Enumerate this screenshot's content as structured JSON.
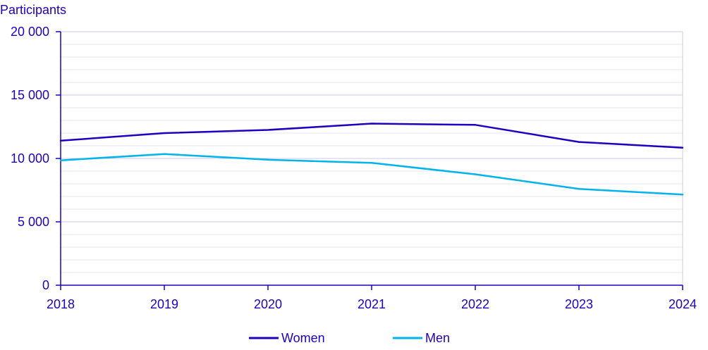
{
  "chart_data": {
    "type": "line",
    "ylabel": "Participants",
    "x": [
      "2018",
      "2019",
      "2020",
      "2021",
      "2022",
      "2023",
      "2024"
    ],
    "ylim": [
      0,
      20000
    ],
    "yticks": [
      0,
      5000,
      10000,
      15000,
      20000
    ],
    "ytick_labels": [
      "0",
      "5 000",
      "10 000",
      "15 000",
      "20 000"
    ],
    "minor_grid_step": 1000,
    "grid": true,
    "legend_position": "bottom",
    "series": [
      {
        "name": "Women",
        "color": "#1e00be",
        "values": [
          11400,
          12000,
          12250,
          12750,
          12650,
          11300,
          10850
        ]
      },
      {
        "name": "Men",
        "color": "#00b4eb",
        "values": [
          9850,
          10350,
          9900,
          9650,
          8750,
          7600,
          7150
        ]
      }
    ]
  }
}
